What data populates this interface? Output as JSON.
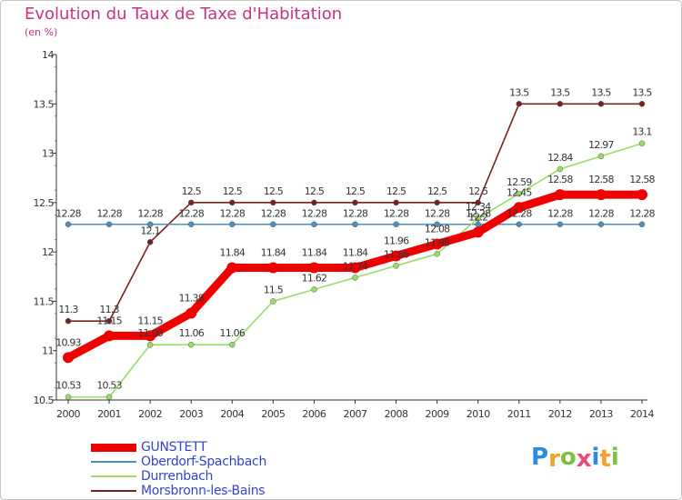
{
  "header": {
    "title": "Evolution du Taux de Taxe d'Habitation",
    "unit": "(en %)"
  },
  "logo": {
    "text": "Proxiti",
    "letters": [
      {
        "ch": "P",
        "color": "#2e8bd9"
      },
      {
        "ch": "r",
        "color": "#f3a12a"
      },
      {
        "ch": "o",
        "color": "#7cc242"
      },
      {
        "ch": "x",
        "color": "#e84a7c"
      },
      {
        "ch": "i",
        "color": "#2e8bd9"
      },
      {
        "ch": "t",
        "color": "#f3a12a"
      },
      {
        "ch": "i",
        "color": "#7cc242"
      }
    ]
  },
  "chart_data": {
    "type": "line",
    "title": "Evolution du Taux de Taxe d'Habitation",
    "ylabel": "(en %)",
    "xlabel": "",
    "categories": [
      "2000",
      "2001",
      "2002",
      "2003",
      "2004",
      "2005",
      "2006",
      "2007",
      "2008",
      "2009",
      "2010",
      "2011",
      "2012",
      "2013",
      "2014"
    ],
    "ylim": [
      10.5,
      14
    ],
    "yticks": [
      10.5,
      11,
      11.5,
      12,
      12.5,
      13,
      13.5,
      14
    ],
    "ytick_labels": [
      "10.5",
      "11",
      "11.5",
      "12",
      "12.5",
      "13",
      "13.5",
      "14"
    ],
    "series": [
      {
        "name": "GUNSTETT",
        "color": "#ee0000",
        "values": [
          10.93,
          11.15,
          11.15,
          11.38,
          11.84,
          11.84,
          11.84,
          11.84,
          11.96,
          12.08,
          12.2,
          12.45,
          12.58,
          12.58,
          12.58
        ],
        "labels": [
          "10.93",
          "11.15",
          "11.15",
          "11.38",
          "11.84",
          "11.84",
          "11.84",
          "11.84",
          "11.96",
          "12.08",
          "12.2",
          "12.45",
          "12.58",
          "12.58",
          "12.58"
        ]
      },
      {
        "name": "Oberdorf-Spachbach",
        "color": "#4f8fc0",
        "values": [
          12.28,
          12.28,
          12.28,
          12.28,
          12.28,
          12.28,
          12.28,
          12.28,
          12.28,
          12.28,
          12.28,
          12.28,
          12.28,
          12.28,
          12.28
        ],
        "labels": [
          "12.28",
          "12.28",
          "12.28",
          "12.28",
          "12.28",
          "12.28",
          "12.28",
          "12.28",
          "12.28",
          "12.28",
          "12.28",
          "12.28",
          "12.28",
          "12.28",
          "12.28"
        ]
      },
      {
        "name": "Durrenbach",
        "color": "#99dd66",
        "values": [
          10.53,
          10.53,
          11.06,
          11.06,
          11.06,
          11.5,
          11.62,
          11.74,
          11.86,
          11.98,
          12.34,
          12.59,
          12.84,
          12.97,
          13.1
        ],
        "labels": [
          "10.53",
          "10.53",
          "11.06",
          "11.06",
          "11.06",
          "11.5",
          "11.62",
          "11.74",
          "11.86",
          "11.98",
          "12.34",
          "12.59",
          "12.84",
          "12.97",
          "13.1"
        ]
      },
      {
        "name": "Morsbronn-les-Bains",
        "color": "#772222",
        "values": [
          11.3,
          11.3,
          12.1,
          12.5,
          12.5,
          12.5,
          12.5,
          12.5,
          12.5,
          12.5,
          12.5,
          13.5,
          13.5,
          13.5,
          13.5
        ],
        "labels": [
          "11.3",
          "11.3",
          "12.1",
          "12.5",
          "12.5",
          "12.5",
          "12.5",
          "12.5",
          "12.5",
          "12.5",
          "12.5",
          "13.5",
          "13.5",
          "13.5",
          "13.5"
        ]
      }
    ],
    "legend_position": "bottom-left"
  }
}
